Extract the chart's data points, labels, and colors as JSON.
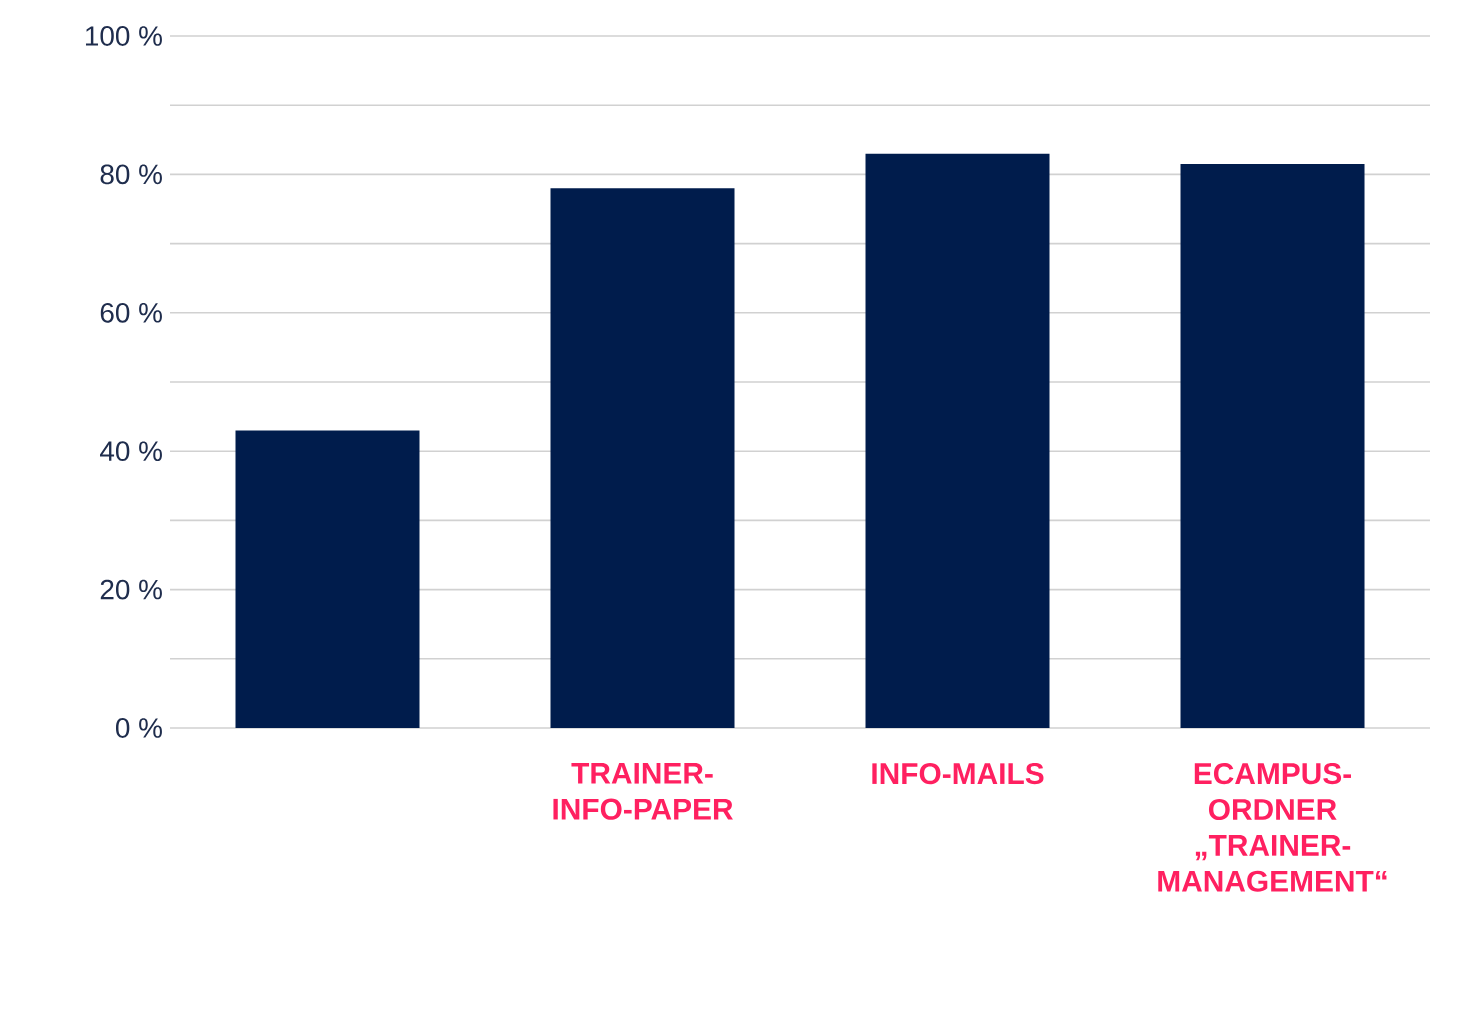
{
  "chart_data": {
    "type": "bar",
    "categories": [
      null,
      "TRAINER-INFO-PAPER",
      "INFO-MAILS",
      "ECAMPUS-ORDNER „TRAINER-MANAGEMENT“"
    ],
    "values": [
      43,
      78,
      83,
      81.5
    ],
    "color": "#001c4c",
    "ylim": [
      0,
      100
    ],
    "yticks": [
      {
        "value": 0,
        "label": "0 %"
      },
      {
        "value": 10,
        "label": null
      },
      {
        "value": 20,
        "label": "20 %"
      },
      {
        "value": 30,
        "label": null
      },
      {
        "value": 40,
        "label": "40 %"
      },
      {
        "value": 50,
        "label": null
      },
      {
        "value": 60,
        "label": "60 %"
      },
      {
        "value": 70,
        "label": null
      },
      {
        "value": 80,
        "label": "80 %"
      },
      {
        "value": 90,
        "label": null
      },
      {
        "value": 100,
        "label": "100 %"
      }
    ],
    "grid": "y"
  }
}
